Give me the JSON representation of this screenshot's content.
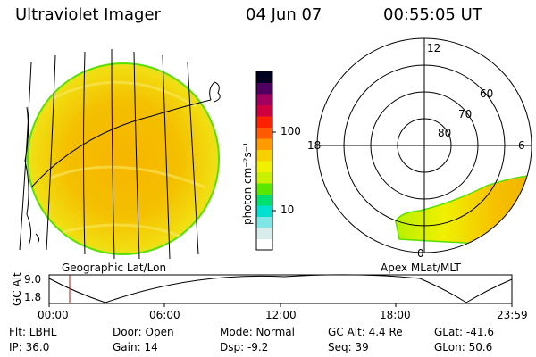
{
  "header": {
    "instrument": "Ultraviolet Imager",
    "date": "04 Jun 07",
    "time": "00:55:05 UT"
  },
  "colorbar": {
    "unit_label": "photon cm⁻²s⁻¹",
    "ticks": [
      "100",
      "10"
    ],
    "colors": [
      "#ffffff",
      "#d8ecec",
      "#7ee6e6",
      "#00e0d0",
      "#00e070",
      "#58e800",
      "#c8f000",
      "#f0f000",
      "#f8d000",
      "#ff9a00",
      "#ff5a00",
      "#ff2000",
      "#d00040",
      "#a00060",
      "#500060",
      "#000020"
    ]
  },
  "left_panel": {
    "caption": "Geographic Lat/Lon"
  },
  "polar_panel": {
    "caption": "Apex MLat/MLT",
    "mlt_labels": {
      "top": "12",
      "left": "18",
      "right": "6",
      "bottom": "0"
    },
    "lat_labels": [
      "60",
      "70",
      "80"
    ]
  },
  "altitude_plot": {
    "ylabel": "GC Alt",
    "yticks": [
      "9.0",
      "1.8"
    ],
    "xticks": [
      "00:00",
      "06:00",
      "12:00",
      "18:00",
      "23:59"
    ],
    "marker_color": "#e00000"
  },
  "info": {
    "flt": "Flt: LBHL",
    "ip": "IP: 36.0",
    "door": "Door: Open",
    "gain": "Gain: 14",
    "mode": "Mode: Normal",
    "dsp": "Dsp:    -9.2",
    "gc_alt": "GC Alt: 4.4 Re",
    "seq": "Seq: 39",
    "glat": "GLat: -41.6",
    "glon": "GLon:  50.6"
  }
}
